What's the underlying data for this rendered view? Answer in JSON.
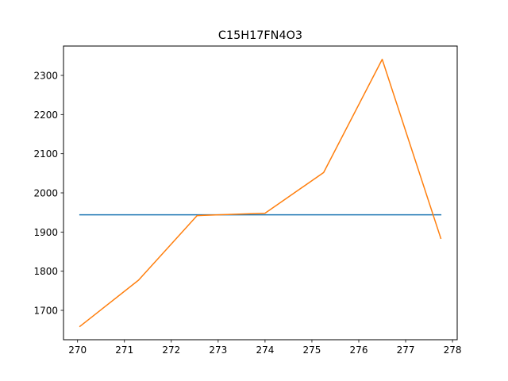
{
  "chart_data": {
    "type": "line",
    "title": "C15H17FN4O3",
    "xlabel": "",
    "ylabel": "",
    "xlim": [
      269.7,
      278.1
    ],
    "ylim": [
      1625,
      2375
    ],
    "grid": false,
    "xticks": [
      270,
      271,
      272,
      273,
      274,
      275,
      276,
      277,
      278
    ],
    "yticks": [
      1700,
      1800,
      1900,
      2000,
      2100,
      2200,
      2300
    ],
    "series": [
      {
        "color": "#1f77b4",
        "x": [
          270.05,
          277.75
        ],
        "y": [
          1944,
          1944
        ]
      },
      {
        "color": "#ff7f0e",
        "x": [
          270.05,
          271.3,
          272.55,
          274.0,
          275.25,
          276.5,
          277.75
        ],
        "y": [
          1659,
          1777,
          1942,
          1948,
          2052,
          2341,
          1884
        ]
      }
    ]
  }
}
